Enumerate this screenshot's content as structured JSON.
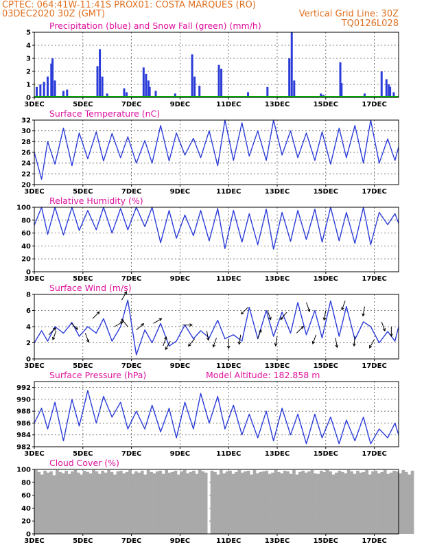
{
  "header": {
    "line1": "CPTEC:   064:41W-11:41S   PROX01: COSTA MARQUES (RO)",
    "line2_left": "03DEC2020 30Z (GMT)",
    "line2_right": "Vertical Grid Line: 30Z",
    "code": "TQ0126L028"
  },
  "colors": {
    "header": "#e07020",
    "title": "#e0109e",
    "line": "#2b3cd8",
    "bars": "#2b3cd8",
    "snow": "#00b000",
    "cloud": "#a9a9a9",
    "arrow": "#000000"
  },
  "x_axis": {
    "days": [
      "3DEC",
      "5DEC",
      "7DEC",
      "9DEC",
      "11DEC",
      "13DEC",
      "15DEC",
      "17DEC"
    ],
    "start_day": 3,
    "end_day": 18
  },
  "chart_data": [
    {
      "id": "precip",
      "type": "bar",
      "title": "Precipitation (blue) and Snow Fall (green) (mm/h)",
      "ylim": [
        0,
        5
      ],
      "yticks": [
        0,
        1,
        2,
        3,
        4,
        5
      ],
      "grid": true,
      "series": [
        {
          "name": "Precipitation (blue)",
          "x": [
            3.1,
            3.25,
            3.4,
            3.55,
            3.7,
            3.75,
            3.85,
            4.2,
            4.35,
            5.6,
            5.7,
            5.8,
            6.0,
            6.7,
            6.8,
            7.5,
            7.6,
            7.7,
            7.75,
            8.0,
            8.8,
            9.5,
            9.6,
            9.8,
            10.6,
            10.7,
            11.8,
            12.6,
            13.5,
            13.6,
            13.7,
            14.8,
            14.9,
            15.0,
            15.2,
            15.6,
            15.65,
            16.6,
            17.3,
            17.5,
            17.6,
            17.65,
            17.8
          ],
          "values": [
            0.8,
            1.0,
            1.2,
            1.6,
            2.6,
            3.0,
            1.3,
            0.5,
            0.6,
            2.4,
            3.7,
            1.6,
            0.3,
            0.7,
            0.4,
            2.3,
            1.8,
            1.3,
            0.8,
            0.5,
            0.3,
            3.3,
            1.6,
            0.9,
            2.5,
            2.2,
            0.4,
            0.8,
            3.0,
            5.0,
            1.3,
            0.3,
            0.2,
            0.1,
            0.1,
            2.7,
            1.1,
            0.3,
            2.0,
            1.4,
            1.0,
            0.8,
            0.4
          ]
        },
        {
          "name": "Snow Fall (green)",
          "x": [],
          "values": []
        }
      ]
    },
    {
      "id": "temp",
      "type": "line",
      "title": "Surface Temperature (nC)",
      "ylim": [
        20,
        32
      ],
      "yticks": [
        20,
        22,
        24,
        26,
        28,
        30,
        32
      ],
      "grid": true,
      "x": [
        3.0,
        3.3,
        3.55,
        3.85,
        4.2,
        4.55,
        4.85,
        5.2,
        5.55,
        5.85,
        6.2,
        6.55,
        6.85,
        7.2,
        7.55,
        7.85,
        8.2,
        8.55,
        8.85,
        9.2,
        9.55,
        9.85,
        10.2,
        10.55,
        10.85,
        11.2,
        11.55,
        11.85,
        12.2,
        12.55,
        12.85,
        13.2,
        13.55,
        13.85,
        14.2,
        14.55,
        14.85,
        15.2,
        15.55,
        15.85,
        16.2,
        16.55,
        16.85,
        17.2,
        17.55,
        17.85,
        18.0
      ],
      "values": [
        26.0,
        21.0,
        28.0,
        23.8,
        30.5,
        23.5,
        29.6,
        24.8,
        29.8,
        24.4,
        29.5,
        25.0,
        28.9,
        24.0,
        28.2,
        24.0,
        31.0,
        24.4,
        29.6,
        25.5,
        28.6,
        25.0,
        30.0,
        23.5,
        32.0,
        24.5,
        31.5,
        25.3,
        30.0,
        24.5,
        32.0,
        25.5,
        30.0,
        25.0,
        29.6,
        24.5,
        29.8,
        23.8,
        30.5,
        25.0,
        31.0,
        24.0,
        32.0,
        24.0,
        28.5,
        24.5,
        27.0
      ]
    },
    {
      "id": "rh",
      "type": "line",
      "title": "Relative Humidity (%)",
      "ylim": [
        0,
        100
      ],
      "yticks": [
        0,
        20,
        40,
        60,
        80,
        100
      ],
      "grid": true,
      "x": [
        3.0,
        3.3,
        3.55,
        3.85,
        4.2,
        4.55,
        4.85,
        5.2,
        5.55,
        5.85,
        6.2,
        6.55,
        6.85,
        7.2,
        7.55,
        7.85,
        8.2,
        8.55,
        8.85,
        9.2,
        9.55,
        9.85,
        10.2,
        10.55,
        10.85,
        11.2,
        11.55,
        11.85,
        12.2,
        12.55,
        12.85,
        13.2,
        13.55,
        13.85,
        14.2,
        14.55,
        14.85,
        15.2,
        15.55,
        15.85,
        16.2,
        16.55,
        16.85,
        17.2,
        17.55,
        17.85,
        18.0
      ],
      "values": [
        72,
        100,
        58,
        100,
        57,
        100,
        64,
        95,
        65,
        100,
        60,
        98,
        65,
        100,
        70,
        100,
        45,
        95,
        52,
        88,
        56,
        95,
        48,
        98,
        36,
        95,
        46,
        90,
        42,
        97,
        35,
        92,
        47,
        95,
        50,
        97,
        46,
        100,
        48,
        92,
        44,
        100,
        42,
        92,
        73,
        90,
        75
      ]
    },
    {
      "id": "wind",
      "type": "line",
      "title": "Surface Wind (m/s)",
      "ylim": [
        0,
        8
      ],
      "yticks": [
        0,
        2,
        4,
        6,
        8
      ],
      "grid": true,
      "x": [
        3.0,
        3.3,
        3.55,
        3.85,
        4.2,
        4.55,
        4.85,
        5.2,
        5.55,
        5.85,
        6.2,
        6.55,
        6.85,
        7.2,
        7.55,
        7.85,
        8.2,
        8.55,
        8.85,
        9.2,
        9.55,
        9.85,
        10.2,
        10.55,
        10.85,
        11.2,
        11.55,
        11.85,
        12.2,
        12.55,
        12.85,
        13.2,
        13.55,
        13.85,
        14.2,
        14.55,
        14.85,
        15.2,
        15.55,
        15.85,
        16.2,
        16.55,
        16.85,
        17.2,
        17.55,
        17.85,
        18.0
      ],
      "values": [
        2.0,
        3.5,
        2.2,
        4.0,
        3.2,
        4.5,
        2.8,
        4.0,
        3.2,
        5.0,
        2.2,
        4.0,
        7.3,
        0.5,
        3.6,
        2.0,
        4.4,
        1.6,
        2.2,
        4.2,
        2.5,
        3.5,
        2.6,
        4.8,
        2.5,
        3.0,
        2.2,
        6.4,
        2.5,
        6.0,
        2.8,
        5.8,
        3.2,
        7.0,
        3.0,
        6.0,
        2.6,
        7.2,
        2.8,
        6.5,
        2.4,
        4.6,
        4.0,
        2.0,
        3.4,
        2.2,
        4.0
      ],
      "arrows": {
        "x": [
          3.6,
          3.9,
          4.5,
          5.1,
          5.4,
          6.3,
          6.6,
          6.85,
          7.2,
          7.9,
          8.3,
          8.6,
          9.1,
          9.6,
          10.1,
          10.5,
          11.0,
          11.5,
          11.8,
          12.2,
          12.6,
          13.0,
          13.4,
          13.8,
          14.2,
          14.6,
          15.0,
          15.4,
          15.8,
          16.2,
          16.6,
          17.0,
          17.3,
          17.7
        ],
        "dir_deg": [
          45,
          200,
          135,
          160,
          45,
          60,
          30,
          320,
          50,
          60,
          20,
          210,
          90,
          220,
          170,
          200,
          180,
          190,
          225,
          20,
          160,
          190,
          220,
          45,
          160,
          200,
          190,
          170,
          200,
          185,
          190,
          210,
          160,
          180
        ],
        "speed": [
          3.0,
          3.5,
          4.5,
          3.2,
          5.0,
          4.0,
          7.3,
          4.0,
          3.6,
          4.4,
          1.6,
          2.2,
          4.2,
          2.5,
          3.5,
          2.6,
          2.5,
          3.0,
          6.4,
          2.5,
          6.0,
          2.8,
          5.8,
          3.2,
          7.0,
          3.0,
          6.0,
          2.6,
          7.2,
          2.8,
          6.5,
          2.4,
          4.6,
          4.0
        ]
      }
    },
    {
      "id": "press",
      "type": "line",
      "title": "Surface Pressure (hPa)",
      "extra_label": "Model Altitude: 182.858  m",
      "ylim": [
        982,
        993
      ],
      "yticks": [
        982,
        984,
        986,
        988,
        990,
        992
      ],
      "grid": true,
      "x": [
        3.0,
        3.3,
        3.55,
        3.85,
        4.2,
        4.55,
        4.85,
        5.2,
        5.55,
        5.85,
        6.2,
        6.55,
        6.85,
        7.2,
        7.55,
        7.85,
        8.2,
        8.55,
        8.85,
        9.2,
        9.55,
        9.85,
        10.2,
        10.55,
        10.85,
        11.2,
        11.55,
        11.85,
        12.2,
        12.55,
        12.85,
        13.2,
        13.55,
        13.85,
        14.2,
        14.55,
        14.85,
        15.2,
        15.55,
        15.85,
        16.2,
        16.55,
        16.85,
        17.2,
        17.55,
        17.85,
        18.0
      ],
      "values": [
        986.0,
        988.5,
        985.0,
        989.5,
        983.0,
        990.0,
        985.5,
        991.5,
        986.0,
        990.5,
        987.0,
        989.5,
        985.0,
        988.0,
        985.0,
        989.0,
        984.5,
        988.5,
        983.5,
        989.5,
        985.0,
        991.0,
        986.0,
        990.5,
        985.0,
        989.0,
        984.0,
        987.5,
        983.5,
        988.0,
        983.0,
        988.5,
        984.0,
        987.5,
        982.5,
        987.5,
        983.5,
        987.0,
        982.5,
        986.5,
        983.0,
        987.0,
        982.5,
        985.0,
        983.5,
        986.0,
        984.0
      ]
    },
    {
      "id": "cloud",
      "type": "bar",
      "title": "Cloud Cover (%)",
      "ylim": [
        0,
        100
      ],
      "yticks": [
        0,
        20,
        40,
        60,
        80,
        100
      ],
      "grid": true,
      "x_start": 3.0,
      "x_step": 0.125,
      "values": [
        99,
        96,
        92,
        98,
        95,
        97,
        91,
        99,
        96,
        94,
        98,
        93,
        97,
        99,
        95,
        92,
        98,
        96,
        94,
        99,
        97,
        93,
        98,
        95,
        99,
        96,
        92,
        97,
        98,
        94,
        96,
        99,
        93,
        97,
        95,
        98,
        92,
        99,
        96,
        94,
        97,
        98,
        93,
        99,
        95,
        96,
        98,
        92,
        97,
        99,
        94,
        96,
        98,
        93,
        99,
        97,
        95,
        0,
        98,
        96,
        92,
        99,
        94,
        97,
        98,
        93,
        96,
        99,
        95,
        97,
        98,
        92,
        99,
        94,
        96,
        97,
        98,
        93,
        95,
        99,
        96,
        94,
        98,
        97,
        93,
        99,
        92,
        96,
        98,
        95,
        97,
        99,
        94,
        93,
        98,
        96,
        99,
        97,
        92,
        95,
        98,
        96,
        94,
        99,
        97,
        93,
        98,
        95,
        96,
        99,
        92,
        97,
        98,
        94,
        96,
        99,
        93,
        95,
        98,
        97,
        94,
        99,
        96,
        92,
        98
      ]
    }
  ]
}
